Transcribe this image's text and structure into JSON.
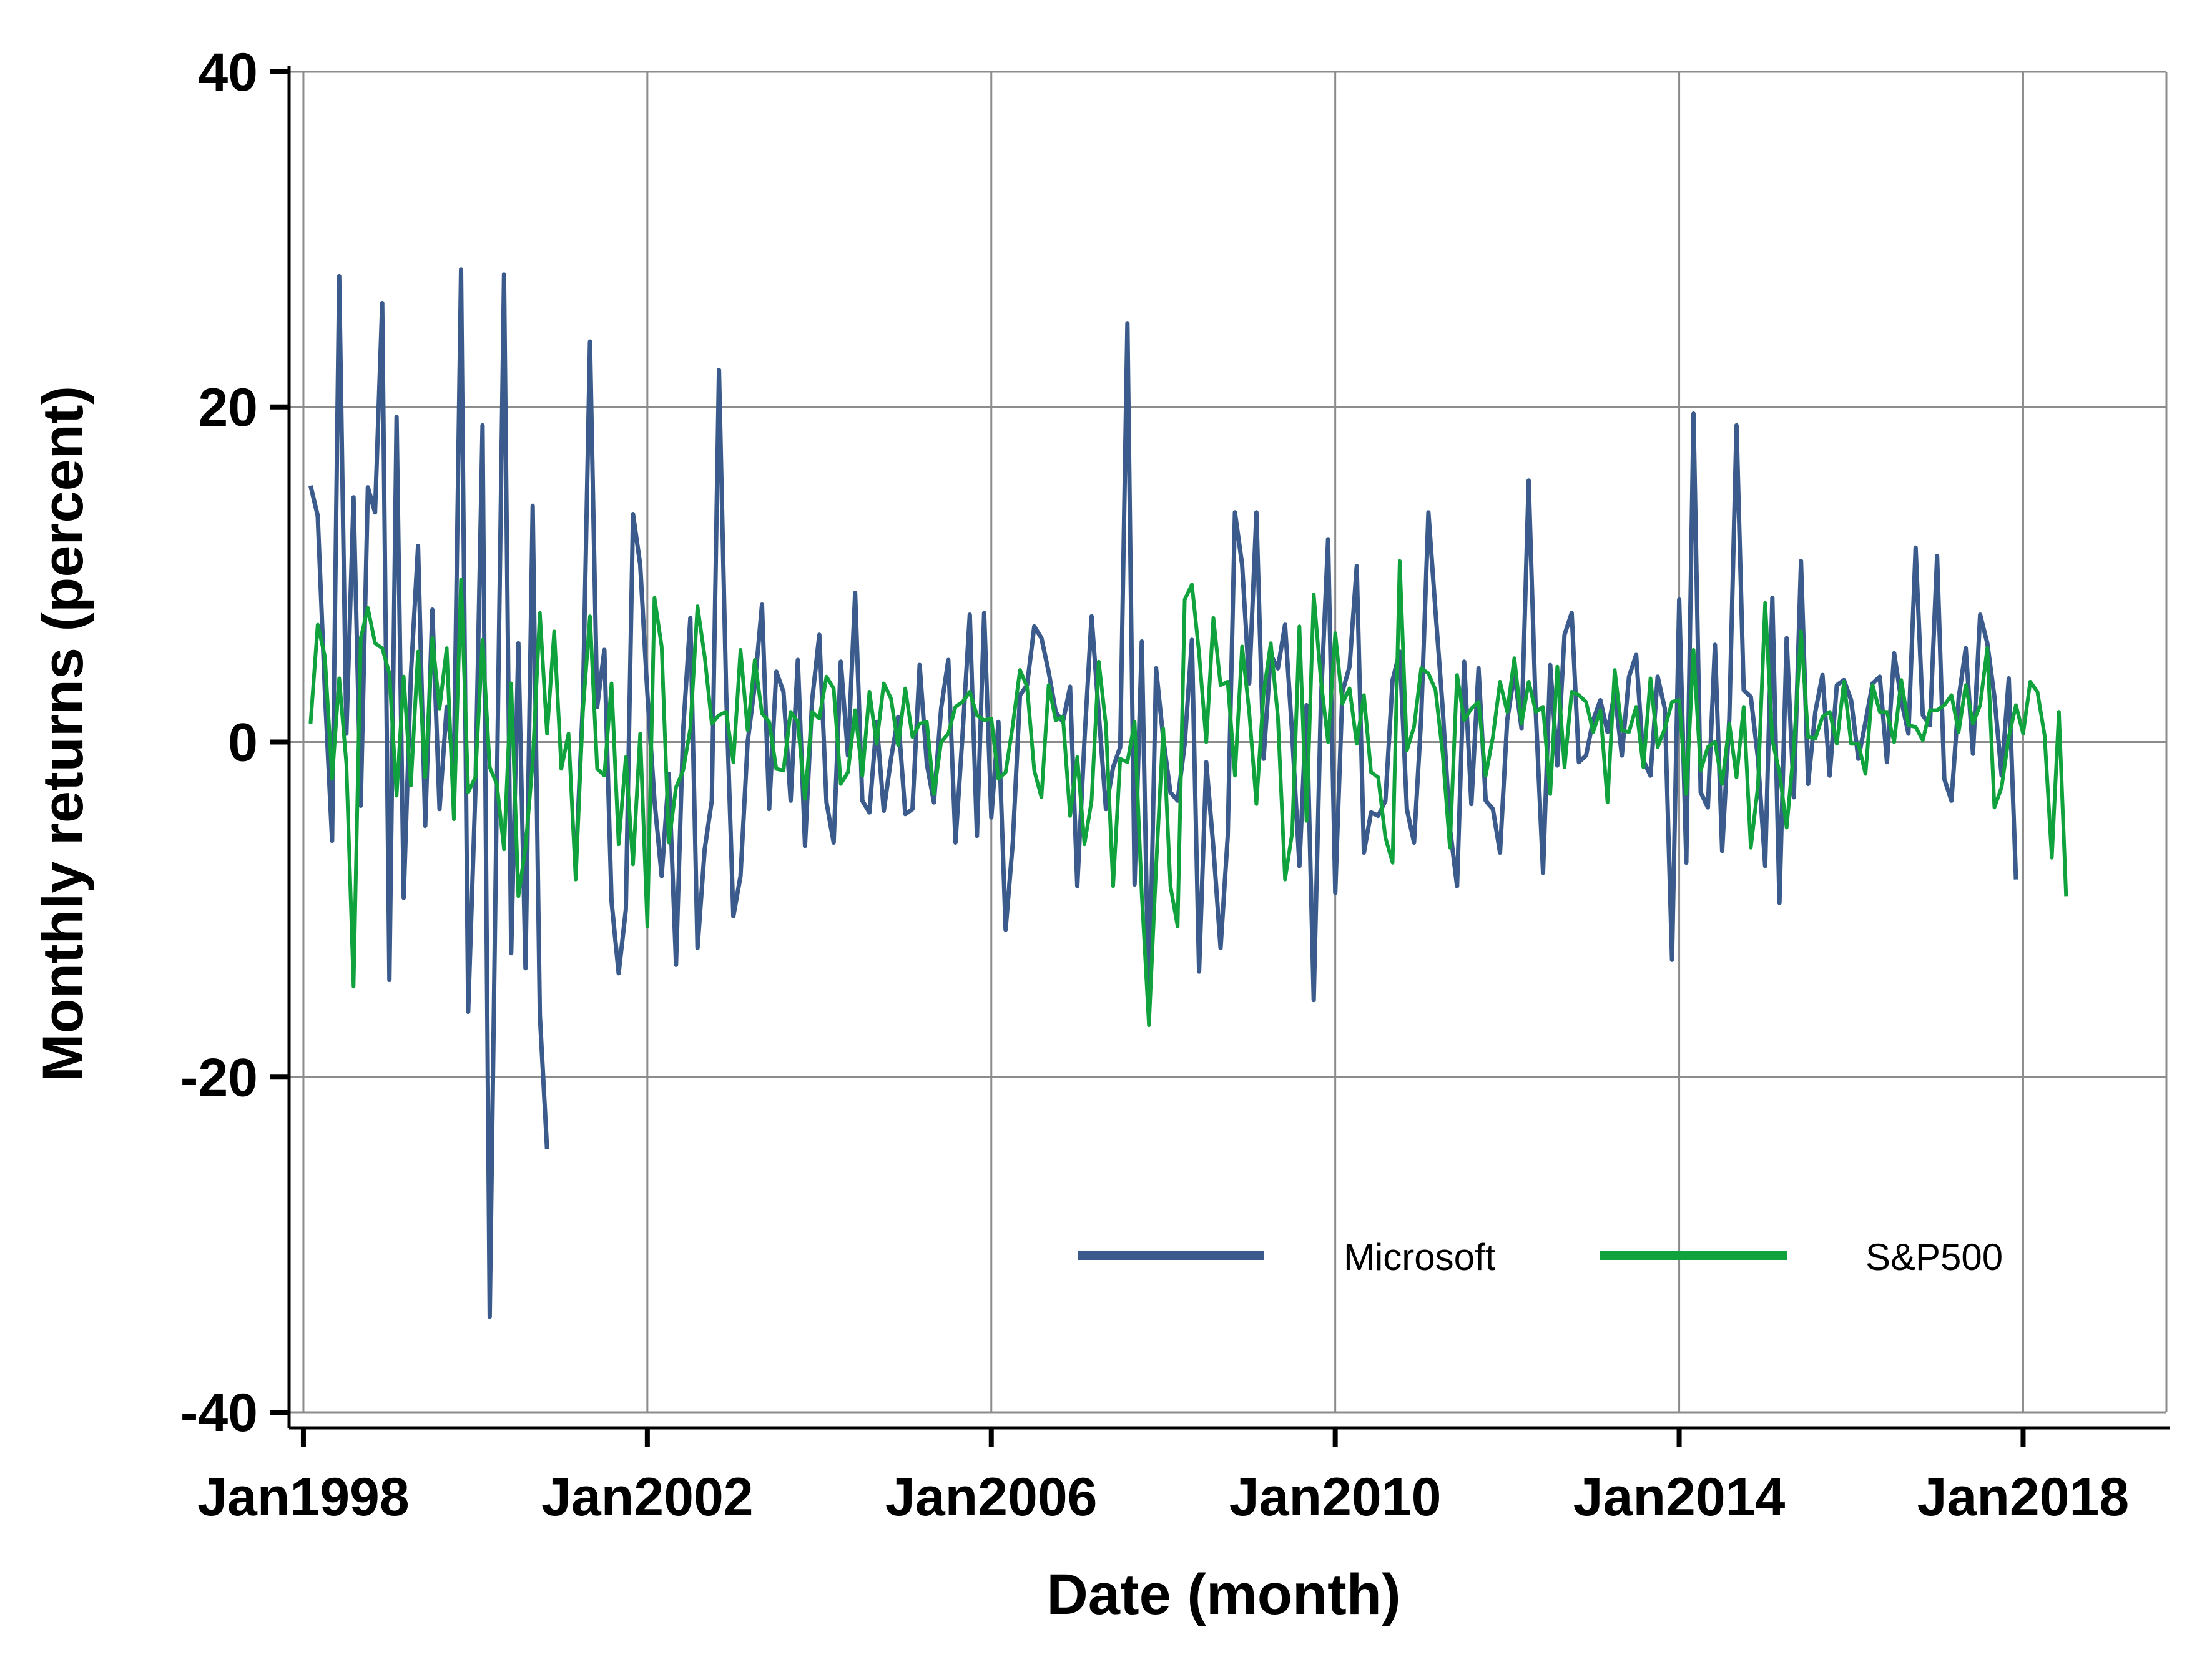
{
  "colors": {
    "microsoft": "#3B5B8C",
    "sp500": "#10A23C",
    "grid": "#8C8C8C",
    "axis": "#000000"
  },
  "chart_data": {
    "type": "line",
    "title": "",
    "xlabel": "Date (month)",
    "ylabel": "Monthly returns (percent)",
    "ylim": [
      -40,
      40
    ],
    "xlim": [
      "1997-11",
      "2019-09"
    ],
    "grid": true,
    "legend_position": "bottom-right",
    "x_ticks": [
      "Jan1998",
      "Jan2002",
      "Jan2006",
      "Jan2010",
      "Jan2014",
      "Jan2018"
    ],
    "y_ticks": [
      "-40",
      "-20",
      "0",
      "20",
      "40"
    ],
    "start_month": "1998-02",
    "series": [
      {
        "name": "Microsoft",
        "color": "#3B5B8C",
        "values": [
          15.3,
          13.5,
          3.0,
          -5.9,
          27.8,
          0.5,
          14.6,
          -3.8,
          15.2,
          13.7,
          26.2,
          -14.2,
          19.4,
          -9.3,
          4.0,
          11.7,
          -5.0,
          7.9,
          -4.0,
          2.1,
          -1.5,
          28.2,
          -16.1,
          -3.0,
          18.9,
          -34.3,
          -2.9,
          27.9,
          -12.6,
          5.9,
          -13.5,
          14.1,
          -16.3,
          -24.3,
          null,
          null,
          null,
          null,
          null,
          null,
          null,
          null,
          null,
          null,
          null,
          null,
          null,
          null,
          null,
          null,
          null,
          null,
          null,
          null,
          null,
          null,
          null,
          null,
          null,
          null,
          null,
          null,
          null,
          null,
          null,
          null,
          null,
          null,
          null,
          null,
          null,
          null,
          null,
          null,
          null,
          null,
          null,
          null,
          null,
          null,
          null,
          null,
          null,
          null,
          null,
          null,
          null,
          null,
          null,
          null,
          null,
          null,
          null,
          null,
          null,
          null,
          null,
          null,
          null,
          null,
          null,
          null,
          null,
          null,
          null,
          null,
          null,
          null,
          null,
          null,
          null,
          null,
          null,
          null,
          null,
          null,
          null,
          null,
          null,
          null,
          null,
          null,
          null,
          null,
          null,
          null,
          null,
          null,
          null,
          null,
          null,
          null,
          null,
          null,
          null,
          null,
          null,
          null,
          null,
          null,
          null,
          null,
          null,
          null,
          null,
          null,
          null,
          null,
          null,
          null,
          null,
          null,
          null,
          null,
          null,
          null,
          null,
          null,
          null,
          null,
          null,
          null,
          null,
          null,
          null,
          null,
          null,
          null,
          null,
          null,
          null,
          null,
          null,
          null,
          null,
          null,
          null,
          null,
          null,
          null,
          null,
          null,
          null,
          null,
          null,
          null,
          null,
          null,
          null,
          null,
          null,
          null,
          null,
          null,
          null,
          null,
          null,
          null,
          null,
          null,
          null,
          null,
          null,
          null,
          null,
          null,
          null,
          null,
          null,
          null,
          null,
          null,
          null,
          null,
          null,
          null,
          null,
          null,
          null,
          null,
          null,
          null,
          null,
          null,
          null,
          null,
          null,
          null,
          null,
          null,
          null,
          null,
          null,
          null,
          null,
          null,
          null,
          null,
          null,
          null,
          null,
          null,
          null,
          null,
          null,
          null,
          null,
          null,
          null,
          null,
          null,
          null,
          null,
          null,
          null,
          null,
          null,
          null,
          null,
          null,
          null,
          null,
          null,
          null,
          null,
          null,
          null,
          null,
          null
        ],
        "segments": [
          {
            "start_month": "2001-03",
            "values": [
              -7.5,
              2.3,
              23.9,
              2.1,
              5.5,
              -9.5,
              -13.8,
              -10.0,
              13.6,
              10.6,
              2.9,
              -3.5,
              -8.0,
              -1.9,
              -13.3,
              0.7,
              7.4,
              -12.3,
              -6.4,
              -3.5,
              22.2,
              3.0,
              -10.4,
              -8.0,
              0.0,
              3.4,
              8.2,
              -4.0,
              4.2,
              3.0,
              -3.5,
              4.9,
              -6.2,
              2.5,
              6.4,
              -3.6,
              -6.0,
              4.8,
              -0.8,
              8.9,
              -3.5,
              -4.2,
              1.2,
              -4.1,
              -1.0,
              1.5,
              -4.3,
              -4.0,
              4.6,
              -1.3,
              -3.6,
              2.0,
              4.9,
              -6.0,
              0.5,
              7.6,
              -5.6,
              7.7,
              -4.5,
              1.2,
              -11.2,
              -6.0,
              2.8,
              3.4,
              6.9,
              6.2,
              4.2,
              1.8,
              1.2,
              3.3,
              -8.6,
              0.1,
              7.5,
              1.7,
              -4.0,
              -1.5,
              -0.3,
              25.0,
              -8.5,
              6.0,
              -16.4,
              4.4,
              0.2,
              -3.0,
              -3.5,
              -0.1,
              6.1,
              -13.7,
              -1.2,
              -6.3,
              -12.3,
              -5.6,
              13.7,
              10.6,
              3.5,
              13.7,
              -1.0,
              5.2,
              4.4,
              7.0,
              0.4,
              -7.4,
              2.2,
              -15.4,
              2.4,
              12.1,
              -9.0,
              3.0,
              4.5,
              10.5,
              -6.6,
              -4.2,
              -4.4,
              -3.5,
              3.7,
              5.4,
              -4.0,
              -6.0,
              1.5,
              13.7,
              7.8,
              2.0,
              -5.1,
              -8.6,
              4.8,
              -3.7,
              4.4,
              -3.5,
              -4.0,
              -6.6,
              1.3,
              4.1,
              0.8,
              15.6,
              1.7,
              -7.8,
              4.6,
              -1.4,
              6.4,
              7.7,
              -1.2,
              -0.8,
              1.3,
              2.5,
              0.6,
              3.0,
              -0.8,
              3.9,
              5.2,
              -1.1,
              -2.0,
              3.9,
              2.0,
              -13.0,
              8.5,
              -7.2,
              19.6,
              -3.0,
              -3.9,
              5.8,
              -6.5,
              1.4,
              18.9,
              3.1,
              2.7,
              -1.0,
              -7.4,
              8.6,
              -9.6,
              6.2,
              -3.3,
              10.8,
              -2.5,
              1.8,
              4.0,
              -2.0,
              3.4,
              3.7,
              2.5,
              -1.0,
              1.2,
              3.5,
              3.9,
              -1.2,
              5.3,
              2.5,
              0.5,
              11.6,
              1.6,
              1.0,
              11.1,
              -2.2,
              -3.5,
              2.6,
              5.6,
              -0.7,
              7.6,
              5.9,
              2.7,
              -2.0,
              3.8,
              -8.2
            ]
          }
        ]
      },
      {
        "name": "S&P500",
        "color": "#10A23C",
        "start_month": "1998-02",
        "values": [
          1.1,
          7.0,
          5.1,
          -2.2,
          3.8,
          -1.3,
          -14.6,
          6.2,
          8.0,
          5.9,
          5.6,
          4.1,
          -3.2,
          3.9,
          -2.6,
          5.4,
          -2.1,
          6.2,
          2.0,
          5.6,
          -4.6,
          9.7,
          -3.0,
          -2.1,
          6.1,
          -1.5,
          -2.5,
          -6.4,
          3.5,
          -9.2,
          -6.3,
          -1.2,
          7.7,
          0.5,
          6.6,
          -1.6,
          0.5,
          -8.2,
          1.8,
          7.5,
          -1.6,
          -2.0,
          3.5,
          -6.1,
          -0.9,
          -7.3,
          0.5,
          -11.0,
          8.6,
          5.7,
          -6.0,
          -2.7,
          -1.7,
          0.8,
          8.1,
          5.1,
          1.1,
          1.6,
          1.8,
          -1.2,
          5.5,
          0.7,
          4.9,
          1.7,
          1.2,
          -1.6,
          -1.7,
          1.8,
          1.2,
          -3.4,
          1.8,
          1.4,
          3.9,
          3.2,
          -2.5,
          -1.8,
          1.9,
          -2.0,
          3.0,
          -0.1,
          3.5,
          2.6,
          -0.2,
          3.2,
          0.3,
          1.1,
          1.2,
          -3.1,
          0.0,
          0.5,
          2.1,
          2.4,
          3.0,
          1.6,
          1.3,
          1.4,
          -2.2,
          -1.8,
          1.0,
          4.3,
          3.3,
          -1.7,
          -3.3,
          3.4,
          1.3,
          1.5,
          -4.4,
          -0.9,
          -6.1,
          -3.5,
          4.8,
          1.0,
          -8.6,
          -1.0,
          -1.2,
          1.2,
          -9.1,
          -16.9,
          -7.5,
          0.8,
          -8.6,
          -11.0,
          8.5,
          9.4,
          5.3,
          0.0,
          7.4,
          3.4,
          3.6,
          -2.0,
          5.7,
          1.8,
          -3.7,
          2.9,
          5.9,
          1.5,
          -8.2,
          -5.4,
          6.9,
          -4.7,
          8.8,
          3.7,
          0.0,
          6.5,
          2.3,
          3.2,
          -0.1,
          2.8,
          -1.8,
          -2.1,
          -5.7,
          -7.2,
          10.8,
          -0.5,
          0.9,
          4.4,
          4.1,
          3.1,
          -0.7,
          -6.3,
          4.0,
          1.3,
          2.0,
          2.4,
          -2.0,
          0.3,
          3.6,
          1.8,
          5.0,
          1.1,
          3.6,
          1.8,
          2.1,
          -3.1,
          4.5,
          -1.5,
          3.0,
          2.8,
          2.4,
          0.6,
          1.9,
          -3.6,
          4.3,
          0.7,
          0.6,
          2.1,
          -1.5,
          3.8,
          -0.3,
          0.8,
          2.4,
          2.5,
          -3.1,
          5.5,
          -1.7,
          -0.3,
          0.0,
          -2.5,
          1.1,
          -2.1,
          2.1,
          -6.3,
          -2.6,
          8.3,
          0.1,
          -1.8,
          -5.1,
          -0.4,
          6.6,
          0.3,
          0.2,
          1.5,
          1.8,
          -0.1,
          3.6,
          -0.1,
          -0.1,
          -1.9,
          3.4,
          1.8,
          1.8,
          0.0,
          3.7,
          1.0,
          0.9,
          0.1,
          1.9,
          1.9,
          2.2,
          2.8,
          0.6,
          3.4,
          1.1,
          2.2,
          5.6,
          -3.9,
          -2.7,
          0.3,
          2.2,
          0.5,
          3.6,
          3.0,
          0.4,
          -6.9,
          1.8,
          -9.2
        ]
      }
    ]
  }
}
